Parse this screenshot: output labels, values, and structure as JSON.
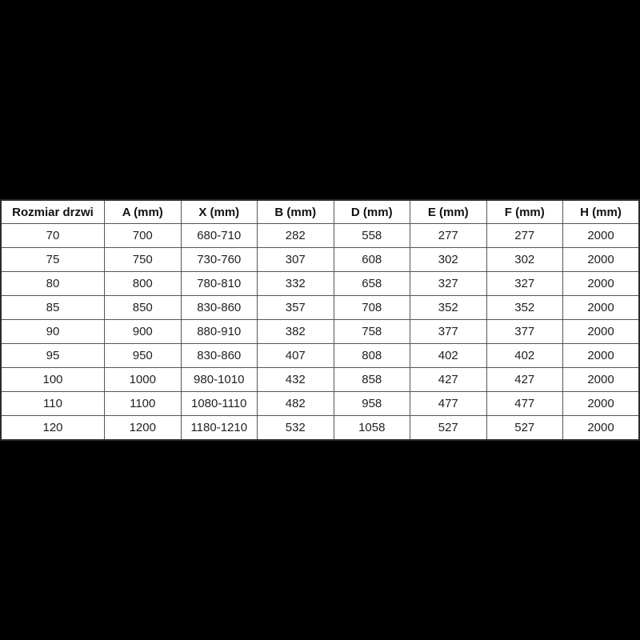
{
  "page": {
    "background_color": "#000000"
  },
  "colors": {
    "table_background": "#ffffff",
    "border_inner": "#555555",
    "border_outer": "#2b2b2b",
    "text": "#1f1f1f"
  },
  "chart_data": {
    "type": "table",
    "title": "",
    "columns": [
      "Rozmiar drzwi",
      "A (mm)",
      "X (mm)",
      "B (mm)",
      "D (mm)",
      "E (mm)",
      "F (mm)",
      "H (mm)"
    ],
    "rows": [
      [
        "70",
        "700",
        "680-710",
        "282",
        "558",
        "277",
        "277",
        "2000"
      ],
      [
        "75",
        "750",
        "730-760",
        "307",
        "608",
        "302",
        "302",
        "2000"
      ],
      [
        "80",
        "800",
        "780-810",
        "332",
        "658",
        "327",
        "327",
        "2000"
      ],
      [
        "85",
        "850",
        "830-860",
        "357",
        "708",
        "352",
        "352",
        "2000"
      ],
      [
        "90",
        "900",
        "880-910",
        "382",
        "758",
        "377",
        "377",
        "2000"
      ],
      [
        "95",
        "950",
        "830-860",
        "407",
        "808",
        "402",
        "402",
        "2000"
      ],
      [
        "100",
        "1000",
        "980-1010",
        "432",
        "858",
        "427",
        "427",
        "2000"
      ],
      [
        "110",
        "1100",
        "1080-1110",
        "482",
        "958",
        "477",
        "477",
        "2000"
      ],
      [
        "120",
        "1200",
        "1180-1210",
        "532",
        "1058",
        "527",
        "527",
        "2000"
      ]
    ]
  }
}
